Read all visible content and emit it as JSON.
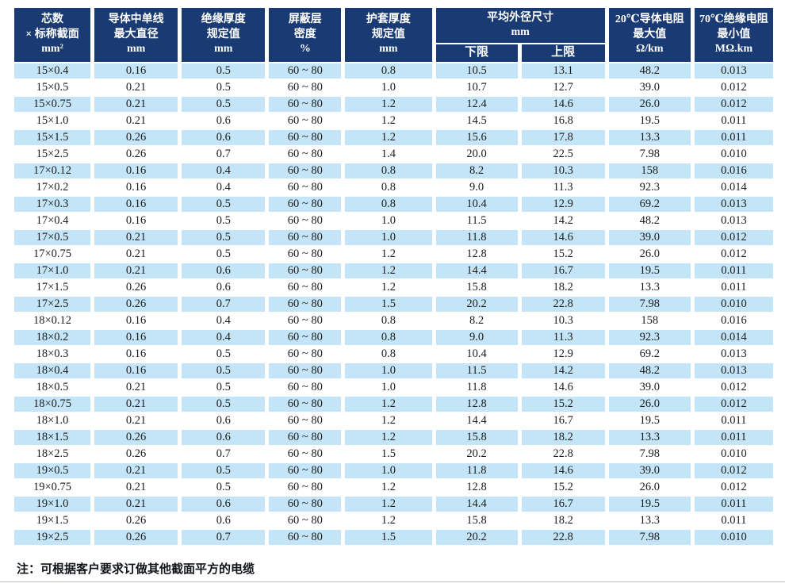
{
  "colors": {
    "header_background": "#1a3a74",
    "stripe_row_background": "#c3e5f7",
    "plain_row_background": "#ffffff",
    "header_text": "#ffffff",
    "cell_text": "#1c1c1c"
  },
  "table": {
    "headers": {
      "cores": "芯数\n× 标称截面\nmm²",
      "conductor": "导体中单线\n最大直径\nmm",
      "insulation": "绝缘厚度\n规定值\nmm",
      "shield": "屏蔽层\n密度\n%",
      "sheath": "护套厚度\n规定值\nmm",
      "outer_diameter_group": "平均外径尺寸\nmm",
      "lower_limit": "下限",
      "upper_limit": "上限",
      "resistance20": "20℃导体电阻\n最大值\nΩ/km",
      "resistance70": "70℃绝缘电阻\n最小值\nMΩ.km"
    },
    "rows": [
      [
        "15×0.4",
        "0.16",
        "0.5",
        "60 ~ 80",
        "0.8",
        "10.5",
        "13.1",
        "48.2",
        "0.013"
      ],
      [
        "15×0.5",
        "0.21",
        "0.5",
        "60 ~ 80",
        "1.0",
        "10.7",
        "12.7",
        "39.0",
        "0.012"
      ],
      [
        "15×0.75",
        "0.21",
        "0.5",
        "60 ~ 80",
        "1.2",
        "12.4",
        "14.6",
        "26.0",
        "0.012"
      ],
      [
        "15×1.0",
        "0.21",
        "0.6",
        "60 ~ 80",
        "1.2",
        "14.5",
        "16.8",
        "19.5",
        "0.011"
      ],
      [
        "15×1.5",
        "0.26",
        "0.6",
        "60 ~ 80",
        "1.2",
        "15.6",
        "17.8",
        "13.3",
        "0.011"
      ],
      [
        "15×2.5",
        "0.26",
        "0.7",
        "60 ~ 80",
        "1.4",
        "20.0",
        "22.5",
        "7.98",
        "0.010"
      ],
      [
        "17×0.12",
        "0.16",
        "0.4",
        "60 ~ 80",
        "0.8",
        "8.2",
        "10.3",
        "158",
        "0.016"
      ],
      [
        "17×0.2",
        "0.16",
        "0.4",
        "60 ~ 80",
        "0.8",
        "9.0",
        "11.3",
        "92.3",
        "0.014"
      ],
      [
        "17×0.3",
        "0.16",
        "0.5",
        "60 ~ 80",
        "0.8",
        "10.4",
        "12.9",
        "69.2",
        "0.013"
      ],
      [
        "17×0.4",
        "0.16",
        "0.5",
        "60 ~ 80",
        "1.0",
        "11.5",
        "14.2",
        "48.2",
        "0.013"
      ],
      [
        "17×0.5",
        "0.21",
        "0.5",
        "60 ~ 80",
        "1.0",
        "11.8",
        "14.6",
        "39.0",
        "0.012"
      ],
      [
        "17×0.75",
        "0.21",
        "0.5",
        "60 ~ 80",
        "1.2",
        "12.8",
        "15.2",
        "26.0",
        "0.012"
      ],
      [
        "17×1.0",
        "0.21",
        "0.6",
        "60 ~ 80",
        "1.2",
        "14.4",
        "16.7",
        "19.5",
        "0.011"
      ],
      [
        "17×1.5",
        "0.26",
        "0.6",
        "60 ~ 80",
        "1.2",
        "15.8",
        "18.2",
        "13.3",
        "0.011"
      ],
      [
        "17×2.5",
        "0.26",
        "0.7",
        "60 ~ 80",
        "1.5",
        "20.2",
        "22.8",
        "7.98",
        "0.010"
      ],
      [
        "18×0.12",
        "0.16",
        "0.4",
        "60 ~ 80",
        "0.8",
        "8.2",
        "10.3",
        "158",
        "0.016"
      ],
      [
        "18×0.2",
        "0.16",
        "0.4",
        "60 ~ 80",
        "0.8",
        "9.0",
        "11.3",
        "92.3",
        "0.014"
      ],
      [
        "18×0.3",
        "0.16",
        "0.5",
        "60 ~ 80",
        "0.8",
        "10.4",
        "12.9",
        "69.2",
        "0.013"
      ],
      [
        "18×0.4",
        "0.16",
        "0.5",
        "60 ~ 80",
        "1.0",
        "11.5",
        "14.2",
        "48.2",
        "0.013"
      ],
      [
        "18×0.5",
        "0.21",
        "0.5",
        "60 ~ 80",
        "1.0",
        "11.8",
        "14.6",
        "39.0",
        "0.012"
      ],
      [
        "18×0.75",
        "0.21",
        "0.5",
        "60 ~ 80",
        "1.2",
        "12.8",
        "15.2",
        "26.0",
        "0.012"
      ],
      [
        "18×1.0",
        "0.21",
        "0.6",
        "60 ~ 80",
        "1.2",
        "14.4",
        "16.7",
        "19.5",
        "0.011"
      ],
      [
        "18×1.5",
        "0.26",
        "0.6",
        "60 ~ 80",
        "1.2",
        "15.8",
        "18.2",
        "13.3",
        "0.011"
      ],
      [
        "18×2.5",
        "0.26",
        "0.7",
        "60 ~ 80",
        "1.5",
        "20.2",
        "22.8",
        "7.98",
        "0.010"
      ],
      [
        "19×0.5",
        "0.21",
        "0.5",
        "60 ~ 80",
        "1.0",
        "11.8",
        "14.6",
        "39.0",
        "0.012"
      ],
      [
        "19×0.75",
        "0.21",
        "0.5",
        "60 ~ 80",
        "1.2",
        "12.8",
        "15.2",
        "26.0",
        "0.012"
      ],
      [
        "19×1.0",
        "0.21",
        "0.6",
        "60 ~ 80",
        "1.2",
        "14.4",
        "16.7",
        "19.5",
        "0.011"
      ],
      [
        "19×1.5",
        "0.26",
        "0.6",
        "60 ~ 80",
        "1.2",
        "15.8",
        "18.2",
        "13.3",
        "0.011"
      ],
      [
        "19×2.5",
        "0.26",
        "0.7",
        "60 ~ 80",
        "1.5",
        "20.2",
        "22.8",
        "7.98",
        "0.010"
      ]
    ]
  },
  "footer": {
    "note": "注：可根据客户要求订做其他截面平方的电缆"
  }
}
